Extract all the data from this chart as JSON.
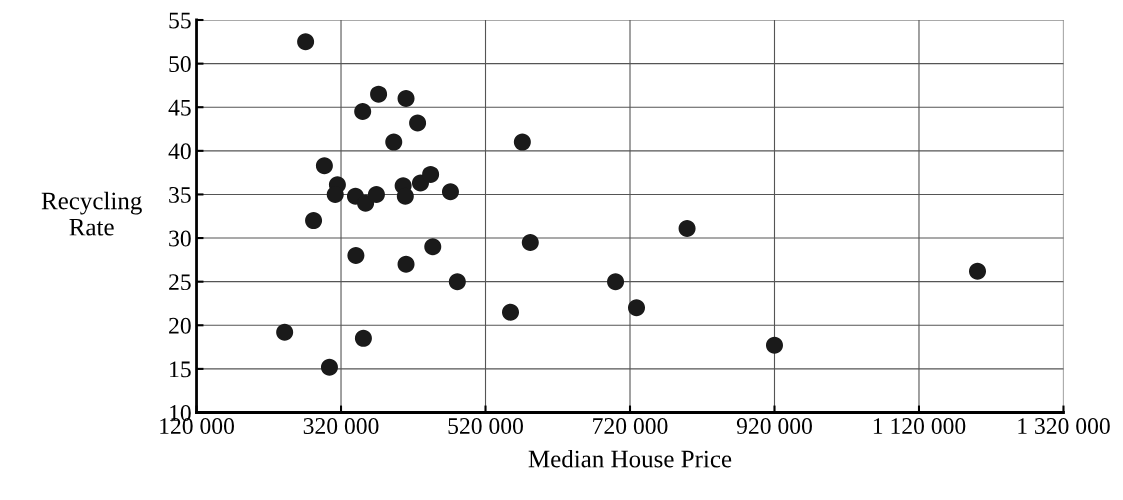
{
  "chart_data": {
    "type": "scatter",
    "xlabel": "Median House Price",
    "ylabel": "Recycling\nRate",
    "x": [
      271000,
      242000,
      282000,
      297000,
      304000,
      315000,
      312000,
      340000,
      340600,
      354000,
      350000,
      351000,
      369000,
      372000,
      393000,
      406000,
      409000,
      410000,
      410000,
      426000,
      430000,
      444000,
      447000,
      471500,
      481000,
      571000,
      554600,
      582000,
      700000,
      729000,
      799000,
      920000,
      1201000
    ],
    "values": [
      52.5,
      19.2,
      32.0,
      38.3,
      15.2,
      36.1,
      35.0,
      34.8,
      28.0,
      34.0,
      44.5,
      18.5,
      35.0,
      46.5,
      41.0,
      36.0,
      34.8,
      46.0,
      27.0,
      43.2,
      36.3,
      37.3,
      29.0,
      35.3,
      25.0,
      41.0,
      21.5,
      29.5,
      25.0,
      22.0,
      31.1,
      17.7,
      26.2
    ],
    "color": "#1a1a1a",
    "marker": "circle",
    "grid": true,
    "xlim": [
      120000,
      1320000
    ],
    "ylim": [
      10,
      55
    ],
    "xticks": [
      {
        "value": 120000,
        "label": "120 000"
      },
      {
        "value": 320000,
        "label": "320 000"
      },
      {
        "value": 520000,
        "label": "520 000"
      },
      {
        "value": 720000,
        "label": "720 000"
      },
      {
        "value": 920000,
        "label": "920 000"
      },
      {
        "value": 1120000,
        "label": "1 120 000"
      },
      {
        "value": 1320000,
        "label": "1 320 000"
      }
    ],
    "yticks": [
      10,
      15,
      20,
      25,
      30,
      35,
      40,
      45,
      50,
      55
    ]
  }
}
